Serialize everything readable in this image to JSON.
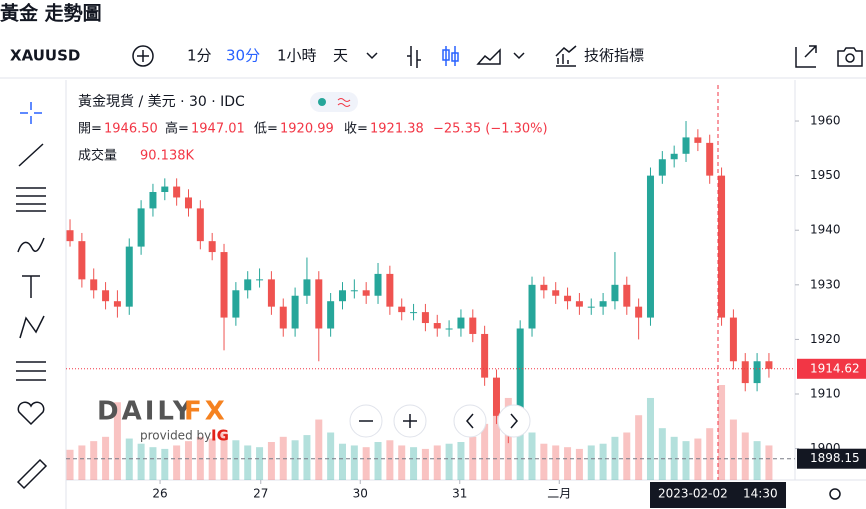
{
  "header": {
    "title": "黃金 走勢圖"
  },
  "toolbar": {
    "symbol": "XAUUSD",
    "intervals": [
      "1分",
      "30分",
      "1小時",
      "天"
    ],
    "indicators": "技術指標"
  },
  "legend": {
    "name": "黃金現貨 / 美元 · 30 · IDC",
    "open_label": "開=",
    "open": "1946.50",
    "high_label": "高=",
    "high": "1947.01",
    "low_label": "低=",
    "low": "1920.99",
    "close_label": "收=",
    "close": "1921.38",
    "change": "−25.35 (−1.30%)",
    "volume_label": "成交量",
    "volume": "90.138K"
  },
  "watermark": {
    "brand": "DAILY",
    "brand2": "FX",
    "provided": "provided by",
    "partner": "IG"
  },
  "chart_data": {
    "type": "candlestick",
    "open": [
      1940,
      1938,
      1931,
      1929,
      1927,
      1926,
      1937,
      1944,
      1947,
      1948,
      1946,
      1944,
      1938,
      1936,
      1924,
      1929,
      1931,
      1931,
      1926,
      1922,
      1928,
      1931,
      1922,
      1927,
      1929,
      1929,
      1928,
      1932,
      1926,
      1925,
      1925,
      1923,
      1922,
      1922,
      1924,
      1921,
      1913,
      1906,
      1904,
      1922,
      1930,
      1929,
      1928,
      1927,
      1926,
      1926,
      1927,
      1930,
      1926,
      1924,
      1950,
      1953,
      1954,
      1957,
      1956,
      1950,
      1924,
      1916,
      1912,
      1916
    ],
    "high": [
      1942,
      1939.5,
      1933,
      1930.5,
      1929,
      1938.5,
      1945.5,
      1948.5,
      1949.5,
      1949.5,
      1947.5,
      1945.5,
      1939.5,
      1937.5,
      1930.5,
      1932.5,
      1933,
      1932.5,
      1927.5,
      1929.5,
      1935,
      1932.5,
      1928.5,
      1930.5,
      1931,
      1930.5,
      1934,
      1933.5,
      1927.5,
      1926.5,
      1926.5,
      1924.5,
      1923.5,
      1925.5,
      1925.5,
      1922.5,
      1914.5,
      1907.5,
      1923.5,
      1931.5,
      1931.5,
      1930.5,
      1929.5,
      1928.5,
      1927.5,
      1928.5,
      1936,
      1931.5,
      1927.5,
      1951.5,
      1954.5,
      1955.5,
      1960,
      1958.5,
      1957.5,
      1951.5,
      1925.5,
      1917.5,
      1917.5,
      1917.5
    ],
    "low": [
      1937,
      1929.5,
      1927.5,
      1925.5,
      1924,
      1924.5,
      1935.5,
      1942.5,
      1945.5,
      1944.5,
      1942.5,
      1936.5,
      1934.5,
      1918,
      1922.5,
      1927.5,
      1929.5,
      1924.5,
      1920.5,
      1920.5,
      1926.5,
      1916,
      1920.5,
      1925.5,
      1927.5,
      1926.5,
      1926.5,
      1924.5,
      1923.5,
      1923.5,
      1921.5,
      1920.5,
      1920.5,
      1920.5,
      1919.5,
      1911.5,
      1904.5,
      1901,
      1902.5,
      1920.5,
      1927.5,
      1926.5,
      1925.5,
      1924.5,
      1924.5,
      1924.5,
      1925.5,
      1924.5,
      1920,
      1922.5,
      1948.5,
      1951.5,
      1952.5,
      1954.5,
      1948.5,
      1922.5,
      1914.5,
      1910.5,
      1910.5,
      1913
    ],
    "close": [
      1938,
      1931,
      1929,
      1927,
      1926,
      1937,
      1944,
      1947,
      1948,
      1946,
      1944,
      1938,
      1936,
      1924,
      1929,
      1931,
      1931,
      1926,
      1922,
      1928,
      1931,
      1922,
      1927,
      1929,
      1929,
      1928,
      1932,
      1926,
      1925,
      1925,
      1923,
      1922,
      1922,
      1924,
      1921,
      1913,
      1906,
      1904,
      1922,
      1930,
      1929,
      1928,
      1927,
      1926,
      1926,
      1927,
      1930,
      1926,
      1924,
      1950,
      1953,
      1954,
      1957,
      1956,
      1950,
      1924,
      1916,
      1912,
      1916,
      1914.62
    ],
    "volume": [
      35,
      40,
      45,
      50,
      90,
      48,
      42,
      38,
      36,
      40,
      45,
      50,
      48,
      55,
      46,
      40,
      38,
      44,
      50,
      46,
      52,
      70,
      55,
      42,
      40,
      38,
      44,
      46,
      40,
      38,
      36,
      40,
      42,
      44,
      50,
      65,
      80,
      95,
      85,
      55,
      42,
      40,
      38,
      36,
      40,
      42,
      50,
      55,
      75,
      95,
      60,
      50,
      45,
      48,
      60,
      110,
      70,
      55,
      45,
      40
    ],
    "up_color": "#26a69a",
    "down_color": "#ef5350",
    "xlim": [
      -0.34,
      61.2
    ],
    "xticks": [
      {
        "value": 7.6,
        "label": "26"
      },
      {
        "value": 16.1,
        "label": "27"
      },
      {
        "value": 24.5,
        "label": "30"
      },
      {
        "value": 32.9,
        "label": "31"
      },
      {
        "value": 41.3,
        "label": "二月"
      }
    ],
    "ylim": [
      1894.25,
      1966.6
    ],
    "yticks": [
      1900,
      1910,
      1920,
      1930,
      1940,
      1950,
      1960
    ],
    "grid": false,
    "last_price": 1914.62,
    "line_price": 1898.15,
    "crosshair_x": 54.7,
    "crosshair_date": "2023-02-02",
    "crosshair_time": "14:30"
  }
}
